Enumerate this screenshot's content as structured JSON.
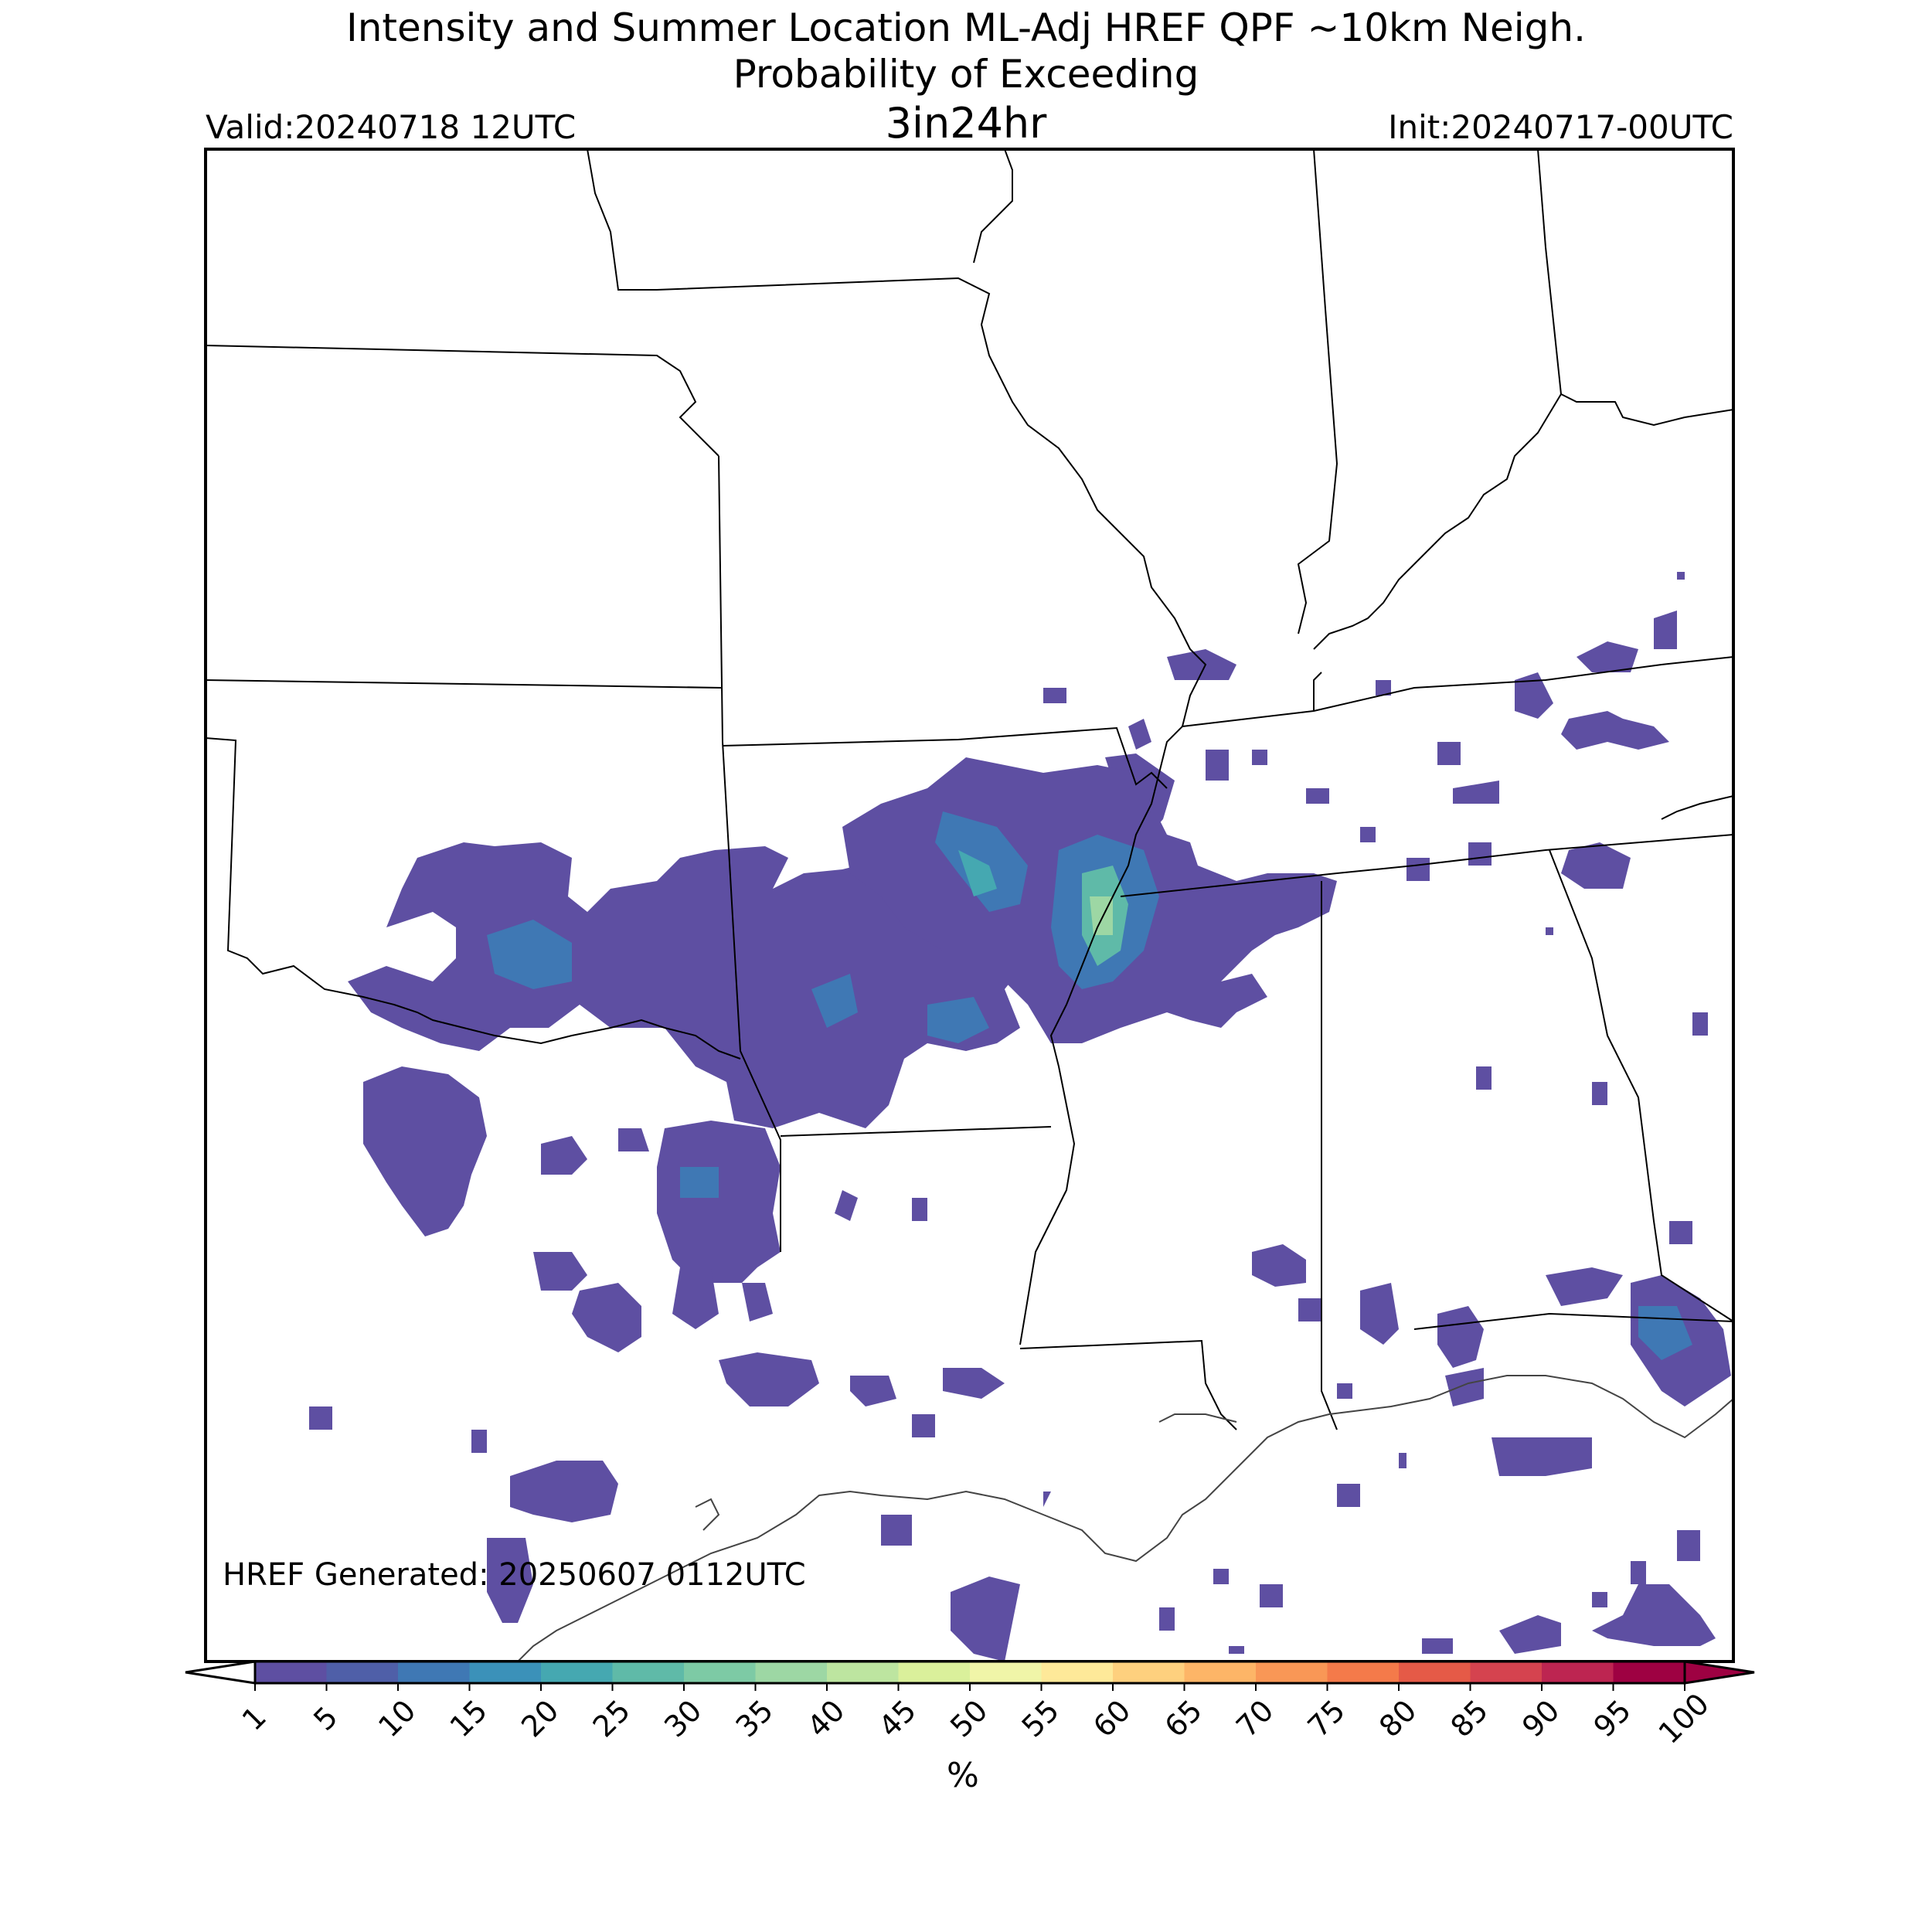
{
  "header": {
    "title_line1": "Intensity and Summer Location ML-Adj HREF QPF ~10km Neigh.",
    "title_line2": "Probability of Exceeding",
    "title_line3": "3in24hr",
    "valid": "Valid:20240718 12UTC",
    "init": "Init:20240717-00UTC"
  },
  "map": {
    "generated_label": "HREF Generated: 20250607 0112UTC"
  },
  "colorbar": {
    "ticks": [
      "1",
      "5",
      "10",
      "15",
      "20",
      "25",
      "30",
      "35",
      "40",
      "45",
      "50",
      "55",
      "60",
      "65",
      "70",
      "75",
      "80",
      "85",
      "90",
      "95",
      "100"
    ],
    "colors": [
      "#5e4fa2",
      "#4f5fa8",
      "#3f78b4",
      "#3b91b9",
      "#45a8b1",
      "#5fbaa8",
      "#7dcaa5",
      "#9dd7a4",
      "#bde5a0",
      "#daf09b",
      "#f0f5a8",
      "#fee999",
      "#fed07e",
      "#fdb567",
      "#f99756",
      "#f47a4a",
      "#e55a47",
      "#d5434f",
      "#bd2551",
      "#9e0142"
    ],
    "unit": "%"
  }
}
